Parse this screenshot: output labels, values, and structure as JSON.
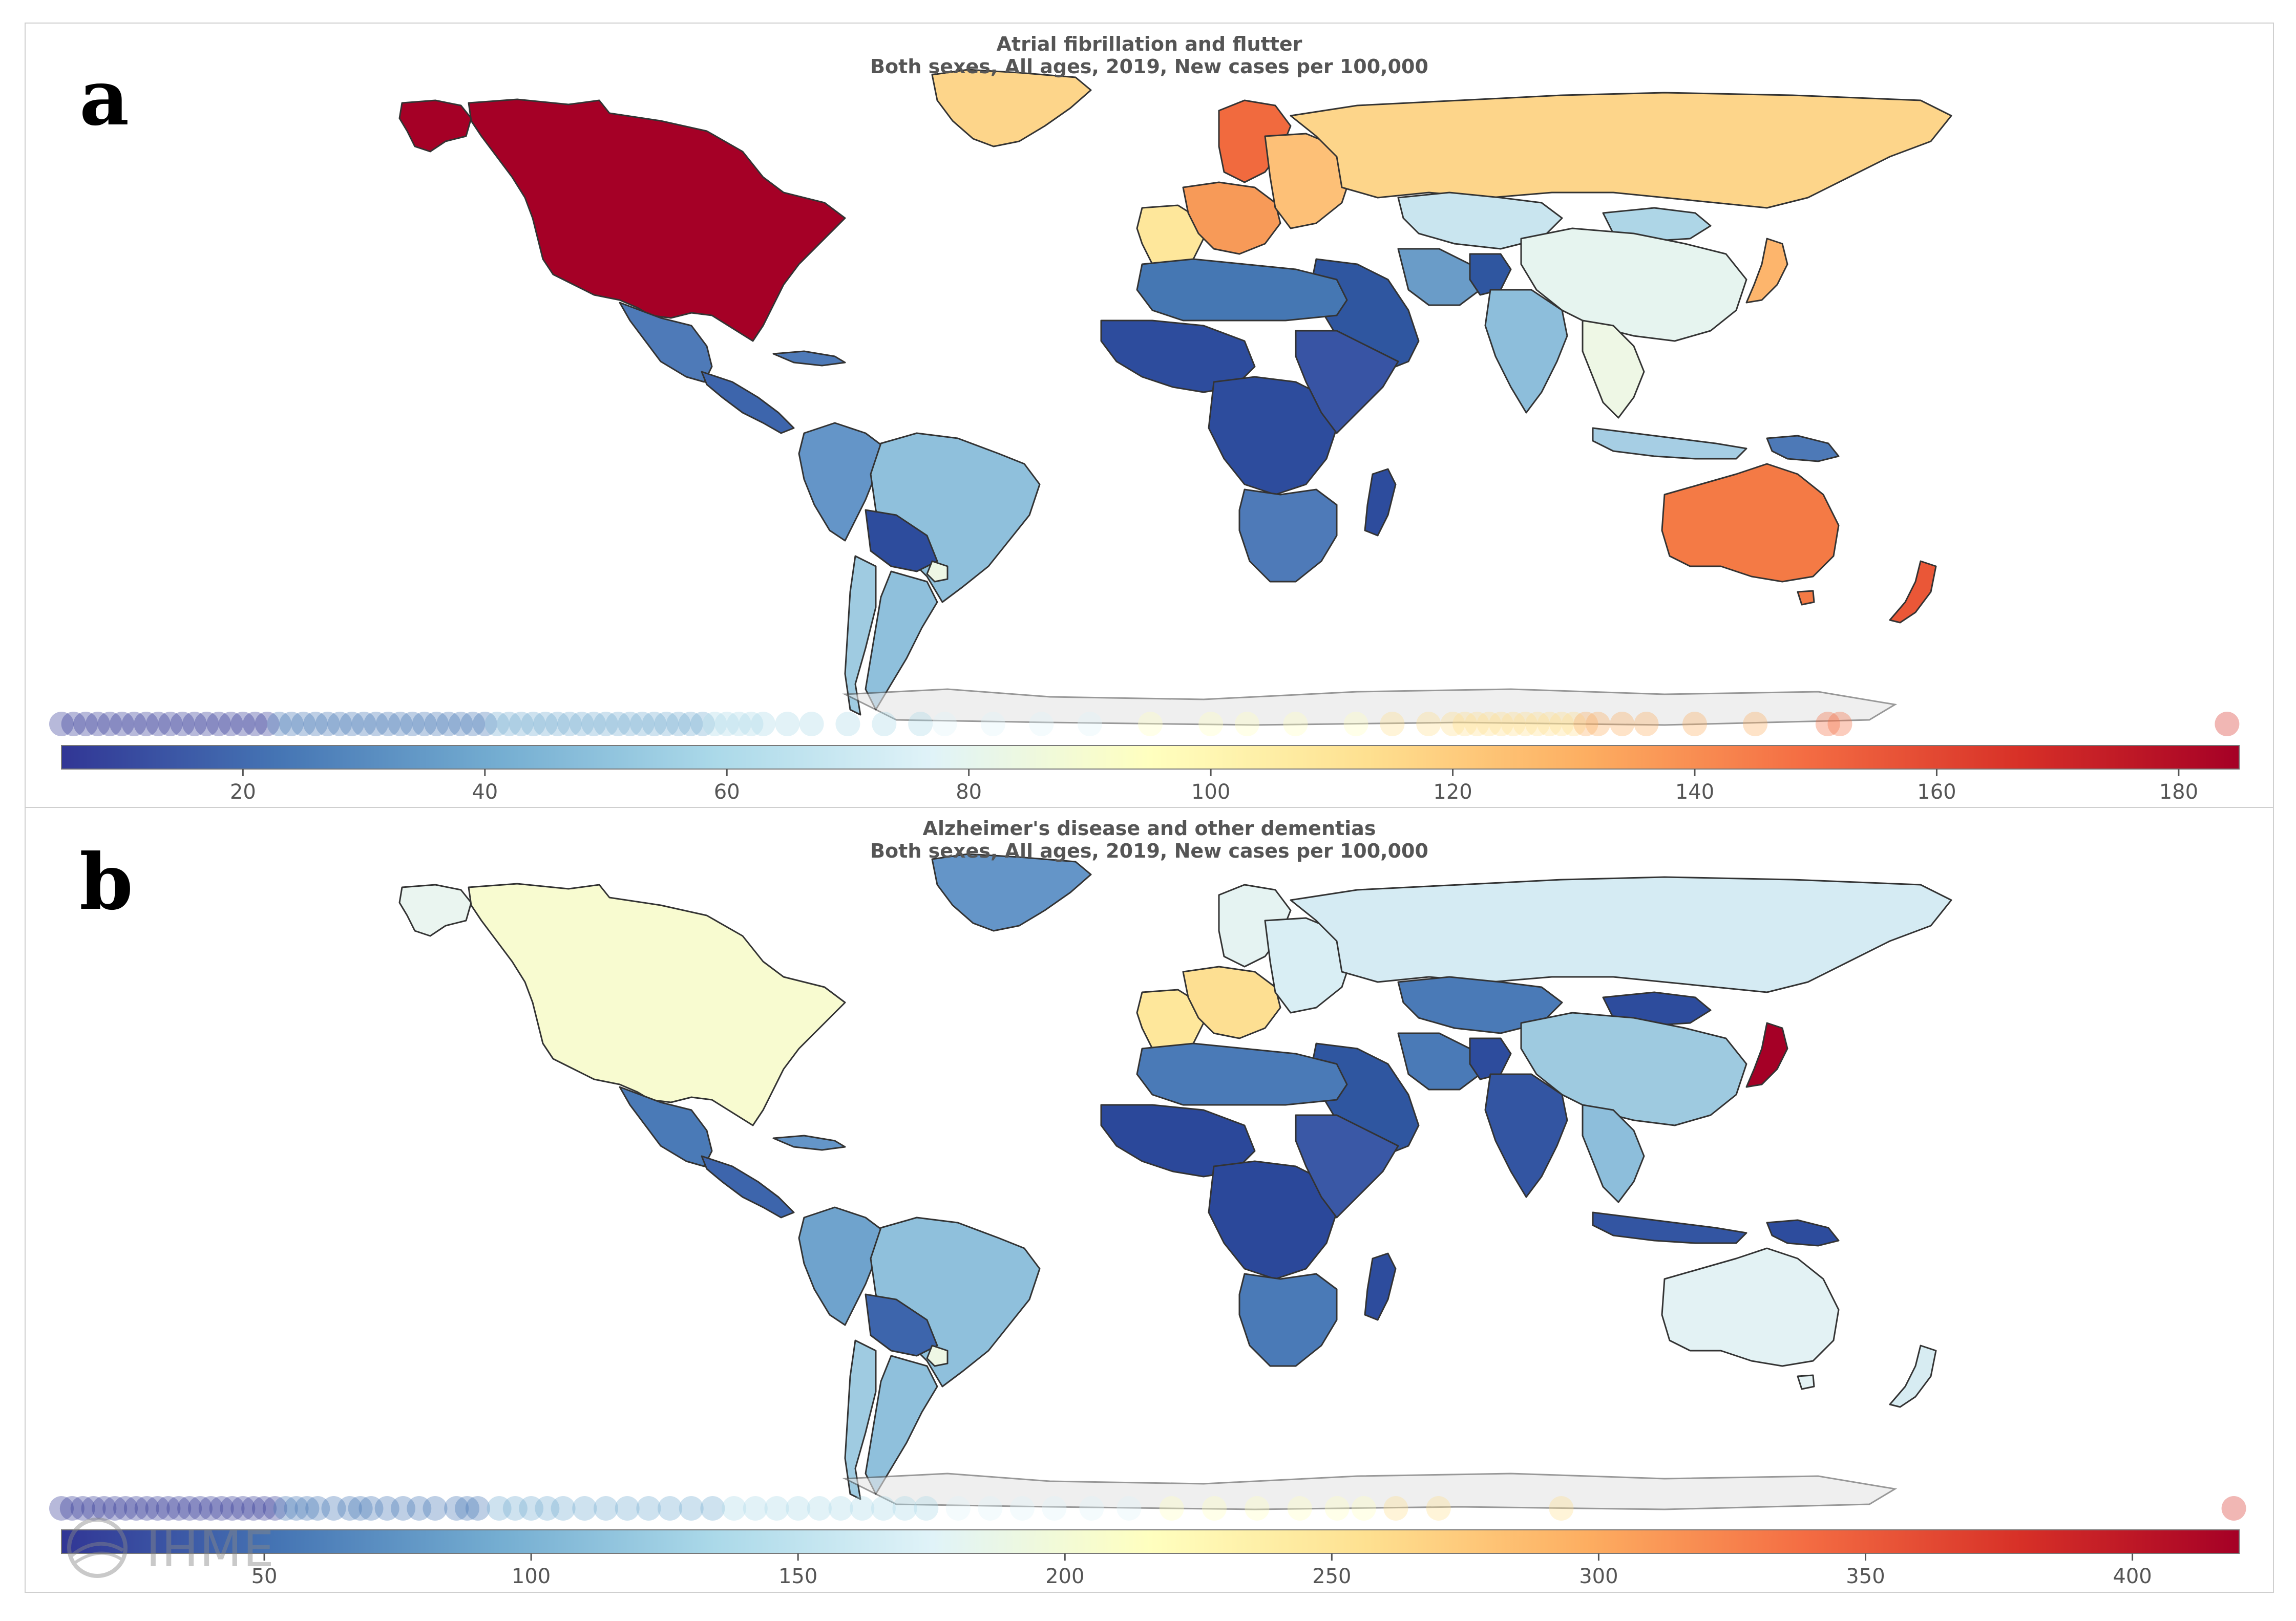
{
  "panels": [
    {
      "letter": "a",
      "title_line1": "Atrial fibrillation and flutter",
      "title_line2": "Both sexes, All ages, 2019, New cases per 100,000",
      "colors": {
        "northAmerica": "#a50026",
        "alaska": "#a50026",
        "greenland": "#fdd58a",
        "scandinavia": "#f16a3e",
        "westEurope": "#fee79b",
        "centralEurope": "#f79a58",
        "easternEurope": "#fdc077",
        "russia": "#fdd58a",
        "kazakhstan": "#c9e5ef",
        "china": "#e6f4ef",
        "mongolia": "#aed6e7",
        "japan": "#fdb56c",
        "middleEast": "#2f56a0",
        "iran": "#6a9cc8",
        "afghanistan": "#2f56a0",
        "southAsia": "#8dbedb",
        "southeastAsia": "#eef7e5",
        "indonesia": "#a6cee4",
        "papua": "#4d79b7",
        "australia": "#f47a45",
        "newZealand": "#ea5737",
        "tasmania": "#f47a45",
        "northAfrica": "#4577b3",
        "westAfrica": "#2d4c9d",
        "centralAfrica": "#2d4c9d",
        "eastAfrica": "#3854a4",
        "southernAfrica": "#4e7ab8",
        "madagascar": "#2d4c9d",
        "mexico": "#4e7ab8",
        "centralAmerica": "#3d65ac",
        "caribbean": "#4e7ab8",
        "colombiaPeru": "#6495c8",
        "brazil": "#8fc0dc",
        "bolivia": "#2d4c9d",
        "argentina": "#8fc0dc",
        "chile": "#9fcbe1",
        "uruguay": "#eef7e5"
      },
      "colorbar": {
        "ticks": [
          "20",
          "40",
          "60",
          "80",
          "100",
          "120",
          "140",
          "160",
          "180"
        ],
        "tick_values": [
          20,
          40,
          60,
          80,
          100,
          120,
          140,
          160,
          180
        ],
        "min": 5,
        "max": 185,
        "dots": [
          5,
          6,
          7,
          8,
          9,
          10,
          11,
          12,
          13,
          14,
          15,
          16,
          17,
          18,
          19,
          20,
          21,
          22,
          23,
          24,
          25,
          26,
          27,
          28,
          29,
          30,
          31,
          32,
          33,
          34,
          35,
          36,
          37,
          38,
          39,
          40,
          41,
          42,
          43,
          44,
          45,
          46,
          47,
          48,
          49,
          50,
          51,
          52,
          53,
          54,
          55,
          56,
          57,
          58,
          59,
          60,
          61,
          62,
          63,
          65,
          67,
          70,
          73,
          76,
          78,
          82,
          86,
          90,
          95,
          100,
          103,
          107,
          112,
          115,
          118,
          120,
          121,
          122,
          123,
          124,
          125,
          126,
          127,
          128,
          129,
          130,
          131,
          132,
          134,
          136,
          140,
          145,
          151,
          152,
          184
        ]
      }
    },
    {
      "letter": "b",
      "title_line1": "Alzheimer's disease and other dementias",
      "title_line2": "Both sexes, All ages, 2019, New cases per 100,000",
      "colors": {
        "northAmerica": "#f8fbd0",
        "alaska": "#eaf5f0",
        "greenland": "#6495c8",
        "scandinavia": "#e5f3f2",
        "westEurope": "#fee79b",
        "centralEurope": "#fddf92",
        "easternEurope": "#d9eef4",
        "russia": "#d5ebf3",
        "kazakhstan": "#4a7ab7",
        "china": "#9ecae0",
        "mongolia": "#2d4c9d",
        "japan": "#a50026",
        "middleEast": "#2f56a0",
        "iran": "#4a7ab7",
        "afghanistan": "#2d4c9d",
        "southAsia": "#3355a2",
        "southeastAsia": "#8dbedb",
        "indonesia": "#3355a2",
        "papua": "#2d4c9d",
        "australia": "#e3f2f4",
        "newZealand": "#d7ecf2",
        "tasmania": "#e3f2f4",
        "northAfrica": "#4a7ab7",
        "westAfrica": "#2b489a",
        "centralAfrica": "#2b489a",
        "eastAfrica": "#3a58a6",
        "southernAfrica": "#4a7ab7",
        "madagascar": "#2d4c9d",
        "mexico": "#4a7ab7",
        "centralAmerica": "#3d65ac",
        "caribbean": "#6495c8",
        "colombiaPeru": "#6fa3cd",
        "brazil": "#8fc0dc",
        "bolivia": "#3d65ac",
        "argentina": "#8fc0dc",
        "chile": "#9fcbe1",
        "uruguay": "#eef7e5"
      },
      "colorbar": {
        "ticks": [
          "50",
          "100",
          "150",
          "200",
          "250",
          "300",
          "350",
          "400"
        ],
        "tick_values": [
          50,
          100,
          150,
          200,
          250,
          300,
          350,
          400
        ],
        "min": 12,
        "max": 420,
        "dots": [
          12,
          14,
          16,
          18,
          20,
          22,
          24,
          26,
          28,
          30,
          32,
          34,
          36,
          38,
          40,
          42,
          44,
          46,
          48,
          50,
          52,
          54,
          56,
          58,
          60,
          63,
          66,
          68,
          70,
          73,
          76,
          79,
          82,
          86,
          88,
          90,
          94,
          97,
          100,
          103,
          106,
          110,
          114,
          118,
          122,
          126,
          130,
          134,
          138,
          142,
          146,
          150,
          154,
          158,
          162,
          166,
          170,
          174,
          180,
          186,
          192,
          198,
          205,
          212,
          220,
          228,
          236,
          244,
          251,
          256,
          262,
          270,
          293,
          419
        ]
      }
    }
  ],
  "watermark": {
    "text": "IHME"
  }
}
